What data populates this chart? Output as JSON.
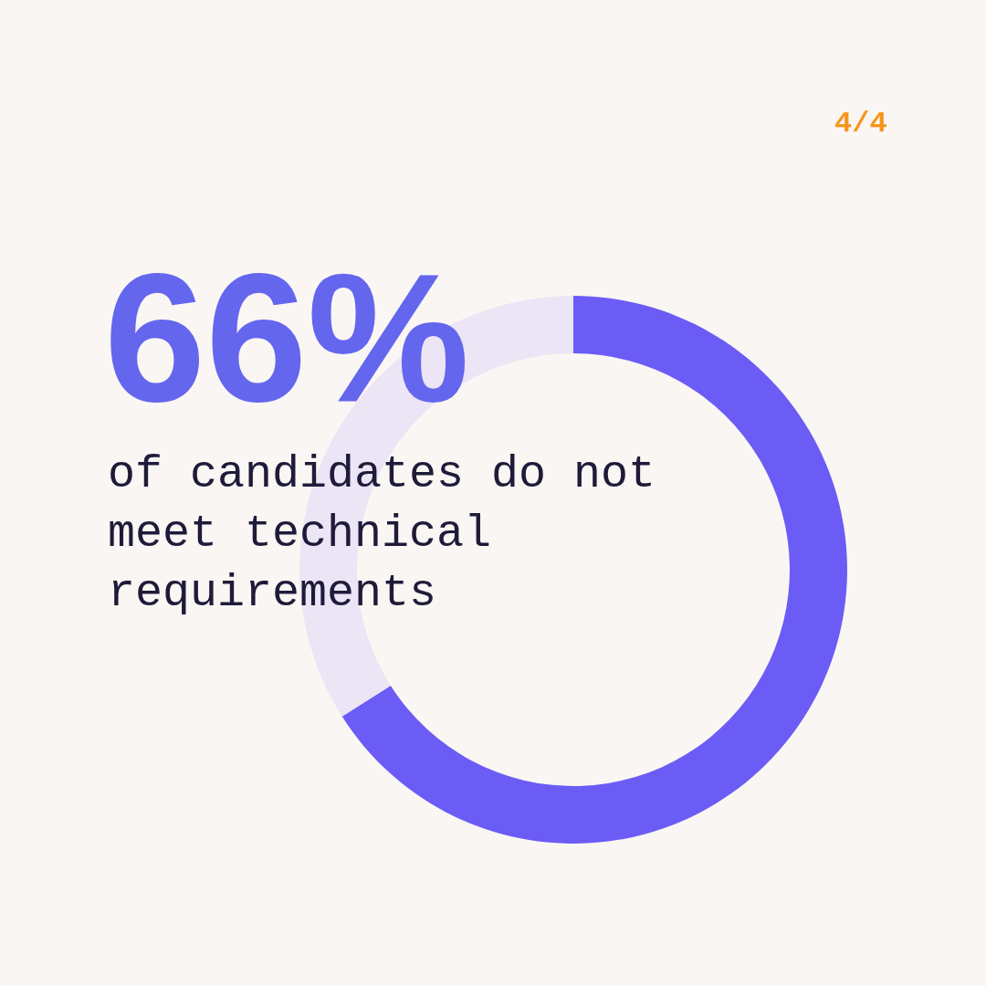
{
  "chart_data": {
    "type": "donut",
    "categories": [
      null,
      null
    ],
    "values": [
      66,
      34
    ],
    "colors": [
      "#6b5cf6",
      "#ebe5f5"
    ],
    "annotations": [
      "4/4",
      "66%",
      "of candidates do not meet technical requirements"
    ],
    "legend": false
  }
}
